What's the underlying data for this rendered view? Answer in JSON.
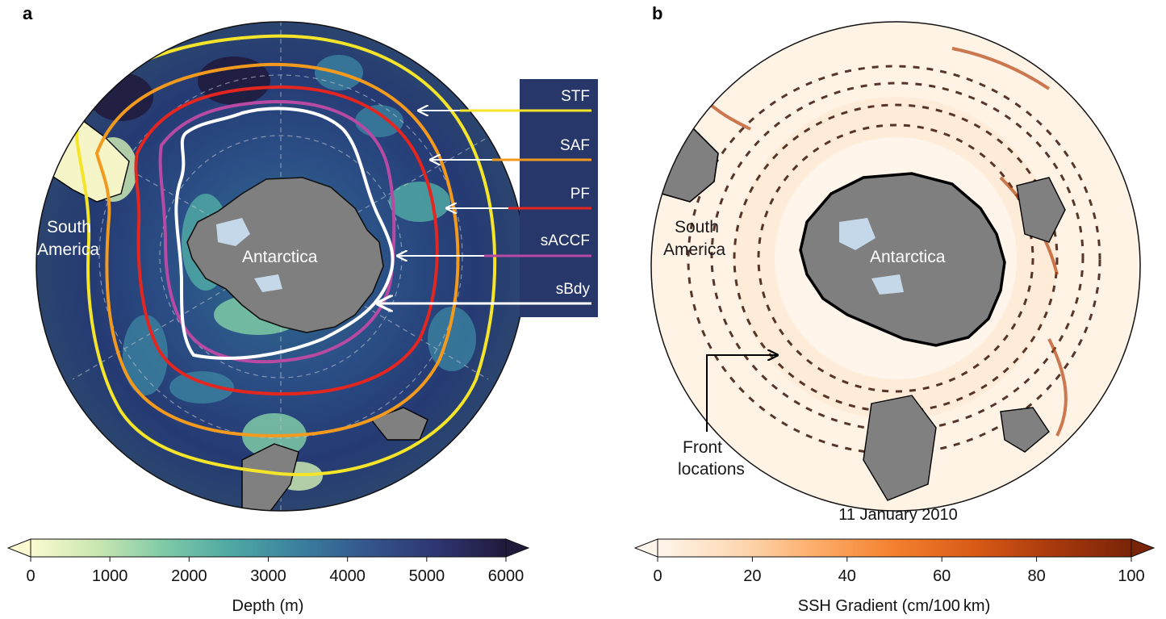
{
  "panels": {
    "a": {
      "letter": "a",
      "labels": {
        "continent": "Antarctica",
        "south_america": [
          "South",
          "America"
        ]
      },
      "fronts": [
        {
          "name": "STF",
          "color": "#f5e52a"
        },
        {
          "name": "SAF",
          "color": "#f29a1e"
        },
        {
          "name": "PF",
          "color": "#e3261f"
        },
        {
          "name": "sACCF",
          "color": "#b84aa3"
        },
        {
          "name": "sBdy",
          "color": "#ffffff"
        }
      ],
      "colorbar": {
        "title": "Depth (m)",
        "ticks": [
          "0",
          "1000",
          "2000",
          "3000",
          "4000",
          "5000",
          "6000"
        ],
        "range": [
          0,
          6000
        ],
        "colormap": [
          "#fbfad0",
          "#c9e7b1",
          "#7fcaa7",
          "#4fa8a4",
          "#3a7f9e",
          "#34558d",
          "#2e3470",
          "#201a3b"
        ]
      }
    },
    "b": {
      "letter": "b",
      "labels": {
        "continent": "Antarctica",
        "south_america": [
          "South",
          "America"
        ],
        "annotation": [
          "Front",
          "locations"
        ]
      },
      "date": "11 January 2010",
      "colorbar": {
        "title": "SSH Gradient (cm/100 km)",
        "ticks": [
          "0",
          "20",
          "40",
          "60",
          "80",
          "100"
        ],
        "range": [
          0,
          100
        ],
        "colormap": [
          "#fff5eb",
          "#fdd9b4",
          "#fdae6b",
          "#f4802e",
          "#d95a16",
          "#a93a0d",
          "#7a2408"
        ]
      }
    }
  }
}
